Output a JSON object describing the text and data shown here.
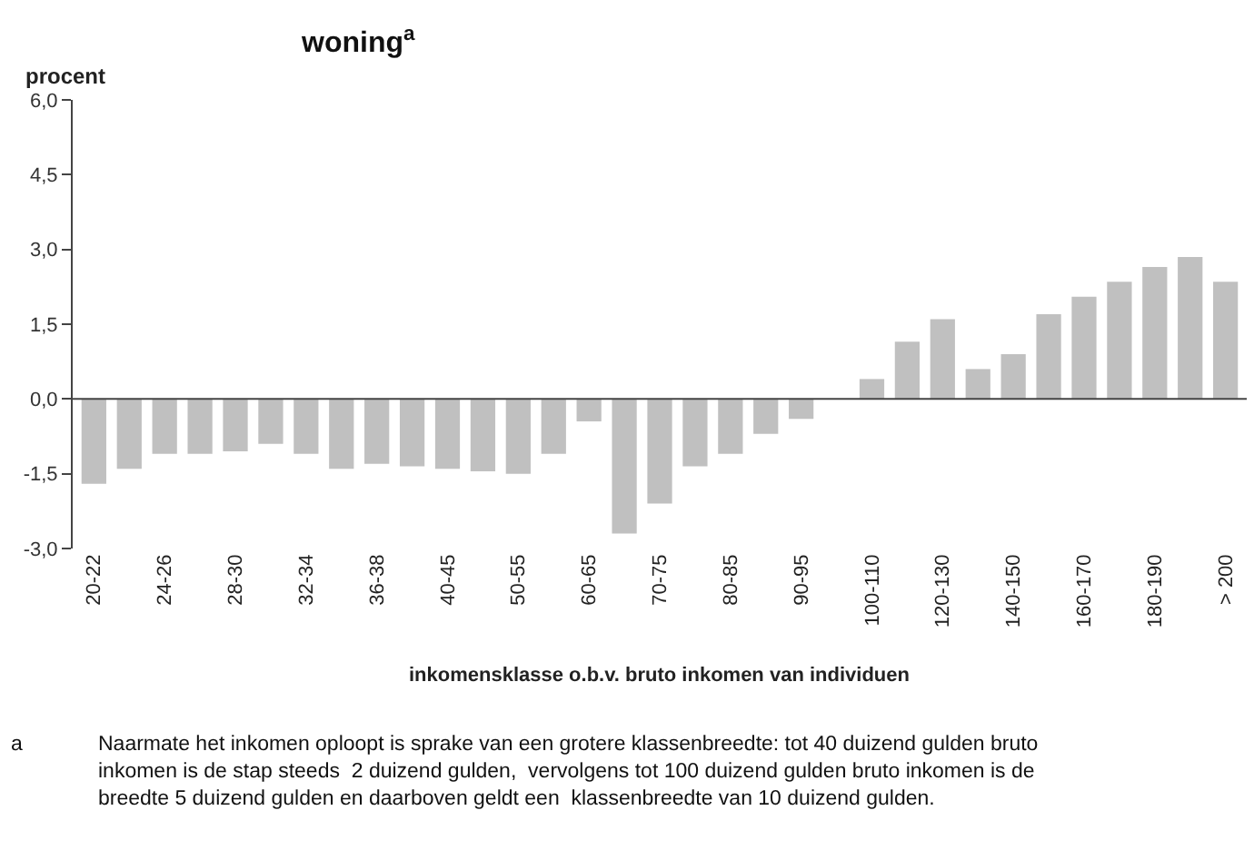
{
  "chart_data": {
    "type": "bar",
    "title": "woning$^{a}$",
    "ylabel": "procent",
    "xlabel": "inkomensklasse o.b.v. bruto inkomen van individuen",
    "categories": [
      "20-22",
      null,
      "24-26",
      null,
      "28-30",
      null,
      "32-34",
      null,
      "36-38",
      null,
      "40-45",
      null,
      "50-55",
      null,
      "60-65",
      null,
      "70-75",
      null,
      "80-85",
      null,
      "90-95",
      null,
      "100-110",
      null,
      "120-130",
      null,
      "140-150",
      null,
      "160-170",
      null,
      "180-190",
      null,
      "> 200"
    ],
    "values": [
      -1.7,
      -1.4,
      -1.1,
      -1.1,
      -1.05,
      -0.9,
      -1.1,
      -1.4,
      -1.3,
      -1.35,
      -1.4,
      -1.45,
      -1.5,
      -1.1,
      -0.45,
      -2.7,
      -2.1,
      -1.35,
      -1.1,
      -0.7,
      -0.4,
      null,
      0.4,
      1.15,
      1.6,
      0.6,
      0.9,
      1.7,
      2.05,
      2.35,
      2.65,
      2.85,
      2.35
    ],
    "color": "#c0c0c0",
    "ylim": [
      -3.0,
      6.0
    ],
    "yticks": [
      {
        "value": -3.0,
        "label": "-3,0"
      },
      {
        "value": -1.5,
        "label": "-1,5"
      },
      {
        "value": 0.0,
        "label": "0,0"
      },
      {
        "value": 1.5,
        "label": "1,5"
      },
      {
        "value": 3.0,
        "label": "3,0"
      },
      {
        "value": 4.5,
        "label": "4,5"
      },
      {
        "value": 6.0,
        "label": "6,0"
      }
    ],
    "grid": false,
    "legend": false,
    "ref_lines": [
      {
        "axis": "y",
        "value": 0.0,
        "color": "#444444"
      }
    ],
    "annotations": [
      "a",
      "Naarmate het inkomen oploopt is sprake van een grotere klassenbreedte: tot 40 duizend gulden bruto inkomen is de stap steeds  2 duizend gulden,  vervolgens tot 100 duizend gulden bruto inkomen is de breedte 5 duizend gulden en daarboven geldt een  klassenbreedte van 10 duizend gulden."
    ]
  }
}
